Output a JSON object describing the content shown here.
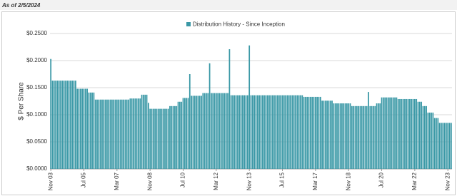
{
  "chart_data": {
    "type": "bar",
    "note": "As of 2/5/2024",
    "ylabel": "$ Per Share",
    "ylim": [
      0,
      0.25
    ],
    "yticks": [
      {
        "value": 0,
        "label": "$0.0000"
      },
      {
        "value": 0.05,
        "label": "$0.0500"
      },
      {
        "value": 0.1,
        "label": "$0.1000"
      },
      {
        "value": 0.15,
        "label": "$0.1500"
      },
      {
        "value": 0.2,
        "label": "$0.2000"
      },
      {
        "value": 0.25,
        "label": "$0.2500"
      }
    ],
    "grid": true,
    "categories": [
      "Nov 03",
      null,
      null,
      null,
      null,
      null,
      null,
      null,
      null,
      null,
      null,
      null,
      null,
      null,
      null,
      null,
      null,
      null,
      null,
      null,
      "Jul 05",
      null,
      null,
      null,
      null,
      null,
      null,
      null,
      null,
      null,
      null,
      null,
      null,
      null,
      null,
      null,
      null,
      null,
      null,
      null,
      "Mar 07",
      null,
      null,
      null,
      null,
      null,
      null,
      null,
      null,
      null,
      null,
      null,
      null,
      null,
      null,
      null,
      null,
      null,
      null,
      null,
      "Nov 08",
      null,
      null,
      null,
      null,
      null,
      null,
      null,
      null,
      null,
      null,
      null,
      null,
      null,
      null,
      null,
      null,
      null,
      null,
      null,
      "Jul 10",
      null,
      null,
      null,
      null,
      null,
      null,
      null,
      null,
      null,
      null,
      null,
      null,
      null,
      null,
      null,
      null,
      null,
      null,
      null,
      "Mar 12",
      null,
      null,
      null,
      null,
      null,
      null,
      null,
      null,
      null,
      null,
      null,
      null,
      null,
      null,
      null,
      null,
      null,
      null,
      null,
      "Nov 13",
      null,
      null,
      null,
      null,
      null,
      null,
      null,
      null,
      null,
      null,
      null,
      null,
      null,
      null,
      null,
      null,
      null,
      null,
      null,
      "Jul 15",
      null,
      null,
      null,
      null,
      null,
      null,
      null,
      null,
      null,
      null,
      null,
      null,
      null,
      null,
      null,
      null,
      null,
      null,
      null,
      "Mar 17",
      null,
      null,
      null,
      null,
      null,
      null,
      null,
      null,
      null,
      null,
      null,
      null,
      null,
      null,
      null,
      null,
      null,
      null,
      null,
      "Nov 18",
      null,
      null,
      null,
      null,
      null,
      null,
      null,
      null,
      null,
      null,
      null,
      null,
      null,
      null,
      null,
      null,
      null,
      null,
      null,
      "Jul 20",
      null,
      null,
      null,
      null,
      null,
      null,
      null,
      null,
      null,
      null,
      null,
      null,
      null,
      null,
      null,
      null,
      null,
      null,
      null,
      "Mar 22",
      null,
      null,
      null,
      null,
      null,
      null,
      null,
      null,
      null,
      null,
      null,
      null,
      null,
      null,
      null,
      null,
      null,
      null,
      null,
      "Nov 23",
      null,
      null
    ],
    "series": [
      {
        "name": "Distribution History - Since Inception",
        "color": "#3a98a6",
        "values": [
          0.203,
          0.163,
          0.163,
          0.163,
          0.163,
          0.163,
          0.163,
          0.163,
          0.163,
          0.163,
          0.163,
          0.163,
          0.163,
          0.163,
          0.163,
          0.163,
          0.148,
          0.148,
          0.148,
          0.148,
          0.148,
          0.148,
          0.148,
          0.141,
          0.141,
          0.141,
          0.141,
          0.128,
          0.128,
          0.128,
          0.128,
          0.128,
          0.128,
          0.128,
          0.128,
          0.128,
          0.128,
          0.128,
          0.128,
          0.128,
          0.128,
          0.128,
          0.128,
          0.128,
          0.128,
          0.128,
          0.128,
          0.128,
          0.13,
          0.13,
          0.13,
          0.13,
          0.13,
          0.13,
          0.13,
          0.137,
          0.137,
          0.137,
          0.137,
          0.122,
          0.111,
          0.111,
          0.111,
          0.111,
          0.111,
          0.111,
          0.111,
          0.111,
          0.111,
          0.111,
          0.111,
          0.111,
          0.116,
          0.116,
          0.116,
          0.116,
          0.116,
          0.124,
          0.124,
          0.124,
          0.131,
          0.131,
          0.131,
          0.131,
          0.175,
          0.135,
          0.135,
          0.135,
          0.135,
          0.135,
          0.135,
          0.135,
          0.14,
          0.14,
          0.14,
          0.14,
          0.195,
          0.14,
          0.14,
          0.14,
          0.14,
          0.14,
          0.14,
          0.14,
          0.14,
          0.14,
          0.14,
          0.14,
          0.221,
          0.136,
          0.136,
          0.136,
          0.136,
          0.136,
          0.136,
          0.136,
          0.136,
          0.136,
          0.136,
          0.136,
          0.228,
          0.136,
          0.136,
          0.136,
          0.136,
          0.136,
          0.136,
          0.136,
          0.136,
          0.136,
          0.136,
          0.136,
          0.136,
          0.136,
          0.136,
          0.136,
          0.136,
          0.136,
          0.136,
          0.136,
          0.136,
          0.136,
          0.136,
          0.136,
          0.136,
          0.136,
          0.136,
          0.136,
          0.136,
          0.136,
          0.136,
          0.136,
          0.136,
          0.133,
          0.133,
          0.133,
          0.133,
          0.133,
          0.133,
          0.133,
          0.133,
          0.133,
          0.133,
          0.133,
          0.126,
          0.126,
          0.126,
          0.126,
          0.126,
          0.126,
          0.126,
          0.121,
          0.121,
          0.121,
          0.121,
          0.121,
          0.121,
          0.121,
          0.121,
          0.121,
          0.121,
          0.121,
          0.116,
          0.116,
          0.116,
          0.116,
          0.116,
          0.116,
          0.116,
          0.116,
          0.116,
          0.116,
          0.142,
          0.116,
          0.116,
          0.116,
          0.116,
          0.121,
          0.121,
          0.121,
          0.132,
          0.132,
          0.132,
          0.132,
          0.132,
          0.132,
          0.132,
          0.132,
          0.132,
          0.132,
          0.129,
          0.129,
          0.129,
          0.129,
          0.129,
          0.129,
          0.129,
          0.129,
          0.129,
          0.129,
          0.129,
          0.129,
          0.124,
          0.124,
          0.124,
          0.116,
          0.116,
          0.116,
          0.104,
          0.104,
          0.104,
          0.104,
          0.094,
          0.094,
          0.094,
          0.085,
          0.085,
          0.085,
          0.085,
          0.085,
          0.085,
          0.085,
          0.085
        ]
      }
    ]
  }
}
